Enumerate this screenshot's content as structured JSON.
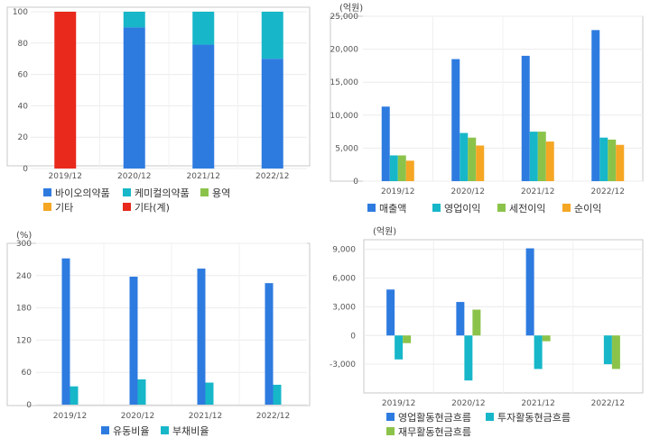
{
  "chart_data": [
    {
      "type": "bar",
      "stacked": true,
      "categories": [
        "2019/12",
        "2020/12",
        "2021/12",
        "2022/12"
      ],
      "series": [
        {
          "name": "바이오의약품",
          "color": "#2e7be0",
          "values": [
            0,
            90,
            79,
            70
          ]
        },
        {
          "name": "케미컬의약품",
          "color": "#17b7c9",
          "values": [
            0,
            10,
            21,
            30
          ]
        },
        {
          "name": "용역",
          "color": "#8bc34a",
          "values": [
            0,
            0,
            0,
            0
          ]
        },
        {
          "name": "기타",
          "color": "#f5a623",
          "values": [
            0,
            0,
            0,
            0
          ]
        },
        {
          "name": "기타(계)",
          "color": "#e8291c",
          "values": [
            100,
            0,
            0,
            0
          ]
        }
      ],
      "ylim": [
        0,
        100
      ],
      "yticks": [
        "0",
        "20",
        "40",
        "60",
        "80",
        "100"
      ],
      "unit_label": "",
      "legend_position": "bottom"
    },
    {
      "type": "bar",
      "categories": [
        "2019/12",
        "2020/12",
        "2021/12",
        "2022/12"
      ],
      "series": [
        {
          "name": "매출액",
          "color": "#2e7be0",
          "values": [
            11300,
            18500,
            19000,
            22900
          ]
        },
        {
          "name": "영업이익",
          "color": "#17b7c9",
          "values": [
            3900,
            7300,
            7500,
            6600
          ]
        },
        {
          "name": "세전이익",
          "color": "#8bc34a",
          "values": [
            3900,
            6600,
            7500,
            6300
          ]
        },
        {
          "name": "순이익",
          "color": "#f5a623",
          "values": [
            3100,
            5400,
            6000,
            5500
          ]
        }
      ],
      "ylim": [
        0,
        25000
      ],
      "yticks": [
        "0",
        "5,000",
        "10,000",
        "15,000",
        "20,000",
        "25,000"
      ],
      "unit_label": "(억원)",
      "legend_position": "bottom"
    },
    {
      "type": "bar",
      "categories": [
        "2019/12",
        "2020/12",
        "2021/12",
        "2022/12"
      ],
      "series": [
        {
          "name": "유동비율",
          "color": "#2e7be0",
          "values": [
            272,
            238,
            253,
            226
          ]
        },
        {
          "name": "부채비율",
          "color": "#17b7c9",
          "values": [
            34,
            47,
            41,
            37
          ]
        }
      ],
      "ylim": [
        0,
        300
      ],
      "yticks": [
        "0",
        "60",
        "120",
        "180",
        "240",
        "300"
      ],
      "unit_label": "(%)",
      "legend_position": "bottom"
    },
    {
      "type": "bar",
      "categories": [
        "2019/12",
        "2020/12",
        "2021/12",
        "2022/12"
      ],
      "series": [
        {
          "name": "영업활동현금흐름",
          "color": "#2e7be0",
          "values": [
            4800,
            3500,
            9100,
            0
          ]
        },
        {
          "name": "투자활동현금흐름",
          "color": "#17b7c9",
          "values": [
            -2500,
            -4700,
            -3500,
            -3000
          ]
        },
        {
          "name": "재무활동현금흐름",
          "color": "#8bc34a",
          "values": [
            -800,
            2700,
            -600,
            -3500
          ]
        }
      ],
      "ylim": [
        -6000,
        10000
      ],
      "yticks": [
        "-3,000",
        "0",
        "3,000",
        "6,000",
        "9,000"
      ],
      "unit_label": "(억원)",
      "legend_position": "bottom"
    }
  ]
}
